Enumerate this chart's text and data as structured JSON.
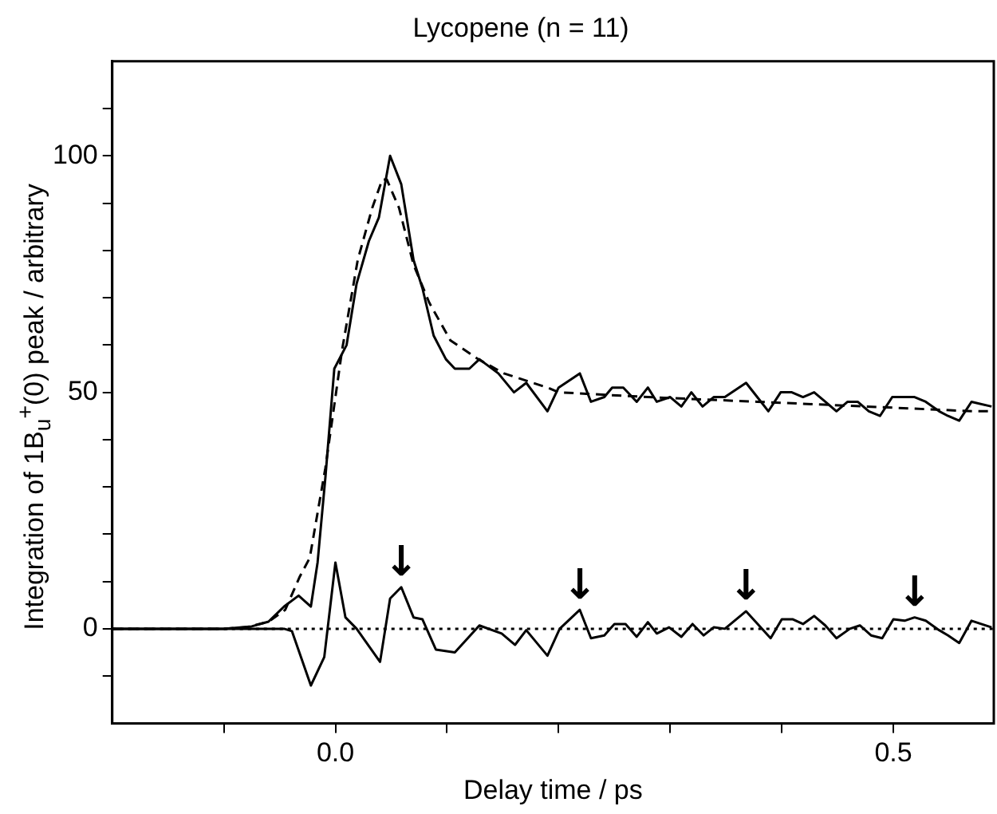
{
  "chart_data": {
    "type": "line",
    "title": "Lycopene (n = 11)",
    "xlabel": "Delay time / ps",
    "ylabel": "Integration of 1B$_{u}$$^{+}$(0) peak / arbitrary",
    "xlim": [
      -0.2,
      0.59
    ],
    "xticks": [
      {
        "value": -0.1,
        "label": null
      },
      {
        "value": 0,
        "label": "0.0"
      },
      {
        "value": 0.1,
        "label": null
      },
      {
        "value": 0.2,
        "label": null
      },
      {
        "value": 0.3,
        "label": null
      },
      {
        "value": 0.4,
        "label": null
      },
      {
        "value": 0.5,
        "label": "0.5"
      }
    ],
    "ylim": [
      -20,
      120
    ],
    "yticks": [
      {
        "value": -10,
        "label": null
      },
      0,
      {
        "value": 10,
        "label": null
      },
      {
        "value": 20,
        "label": null
      },
      {
        "value": 30,
        "label": null
      },
      {
        "value": 40,
        "label": null
      },
      50,
      {
        "value": 60,
        "label": null
      },
      {
        "value": 70,
        "label": null
      },
      {
        "value": 80,
        "label": null
      },
      {
        "value": 90,
        "label": null
      },
      100,
      {
        "value": 110,
        "label": null
      }
    ],
    "grid": false,
    "legend": false,
    "marker": "none",
    "series": [
      {
        "color": "#000000",
        "line_style": "solid",
        "x": [
          -0.2,
          -0.15,
          -0.1,
          -0.075,
          -0.06,
          -0.046,
          -0.033,
          -0.022,
          -0.016,
          -0.009,
          -0.001,
          0.01,
          0.019,
          0.03,
          0.039,
          0.049,
          0.059,
          0.07,
          0.078,
          0.088,
          0.099,
          0.107,
          0.12,
          0.129,
          0.146,
          0.16,
          0.171,
          0.19,
          0.2,
          0.219,
          0.229,
          0.241,
          0.248,
          0.258,
          0.27,
          0.28,
          0.288,
          0.3,
          0.31,
          0.319,
          0.329,
          0.339,
          0.349,
          0.368,
          0.378,
          0.388,
          0.399,
          0.409,
          0.419,
          0.429,
          0.439,
          0.449,
          0.459,
          0.468,
          0.478,
          0.488,
          0.499,
          0.509,
          0.519,
          0.529,
          0.541,
          0.549,
          0.559,
          0.57,
          0.588
        ],
        "values": [
          0,
          0,
          0,
          0.5,
          1.5,
          4.7,
          7,
          4.7,
          14,
          32,
          55,
          60,
          73,
          82,
          87,
          100,
          94,
          78,
          72,
          62,
          57,
          55,
          55,
          57,
          54,
          50,
          52,
          46,
          51,
          54,
          48,
          49,
          51,
          51,
          48,
          51,
          48,
          49,
          47,
          50,
          47,
          49,
          49,
          52,
          49,
          46,
          50,
          50,
          49,
          50,
          48,
          46,
          48,
          48,
          46,
          45,
          49,
          49,
          49,
          48,
          46,
          45,
          44,
          48,
          47
        ]
      },
      {
        "color": "#000000",
        "line_style": "dashed",
        "x": [
          -0.2,
          -0.1,
          -0.08,
          -0.06,
          -0.045,
          -0.032,
          -0.023,
          -0.009,
          0.006,
          0.02,
          0.033,
          0.042,
          0.046,
          0.057,
          0.07,
          0.084,
          0.103,
          0.128,
          0.151,
          0.19,
          0.2,
          0.28,
          0.378,
          0.475,
          0.571,
          0.588
        ],
        "values": [
          0,
          0,
          0.3,
          1.5,
          4,
          11,
          15,
          34,
          59,
          78,
          89,
          95,
          95,
          89,
          77,
          69,
          61,
          57,
          54,
          51,
          50,
          49,
          48,
          47,
          46,
          46
        ]
      },
      {
        "color": "#000000",
        "line_style": "solid",
        "x": [
          -0.2,
          -0.1,
          -0.046,
          -0.039,
          -0.022,
          -0.01,
          0,
          0.009,
          0.019,
          0.04,
          0.049,
          0.059,
          0.07,
          0.078,
          0.09,
          0.107,
          0.129,
          0.149,
          0.161,
          0.171,
          0.19,
          0.201,
          0.219,
          0.229,
          0.241,
          0.25,
          0.26,
          0.27,
          0.28,
          0.288,
          0.299,
          0.31,
          0.32,
          0.33,
          0.339,
          0.349,
          0.368,
          0.39,
          0.4,
          0.41,
          0.419,
          0.429,
          0.439,
          0.449,
          0.461,
          0.47,
          0.48,
          0.49,
          0.5,
          0.51,
          0.519,
          0.529,
          0.541,
          0.549,
          0.559,
          0.57,
          0.588
        ],
        "values": [
          0,
          0,
          0,
          -0.5,
          -12,
          -6,
          14,
          2.4,
          0,
          -7,
          6.4,
          8.8,
          2.4,
          2,
          -4.4,
          -5,
          0.7,
          -1,
          -3.4,
          -0.3,
          -5.7,
          0,
          4,
          -2,
          -1.4,
          1,
          1,
          -1.7,
          1.4,
          -1,
          0.3,
          -1.7,
          1,
          -1.4,
          0.3,
          0,
          3.7,
          -2,
          2,
          2,
          1,
          2.7,
          0.7,
          -2,
          0,
          0.7,
          -1.4,
          -2,
          2,
          1.7,
          2.4,
          1.7,
          -0.3,
          -1.4,
          -3,
          1.7,
          0.3
        ]
      }
    ],
    "ref_lines": [
      {
        "axis": "y",
        "value": 0,
        "line_style": "dotted",
        "color": "#000000"
      }
    ],
    "annotations": [
      {
        "text": "↓",
        "x": 0.059,
        "y": 8.8
      },
      {
        "text": "↓",
        "x": 0.219,
        "y": 4
      },
      {
        "text": "↓",
        "x": 0.368,
        "y": 3.7
      },
      {
        "text": "↓",
        "x": 0.519,
        "y": 2.4
      }
    ]
  }
}
